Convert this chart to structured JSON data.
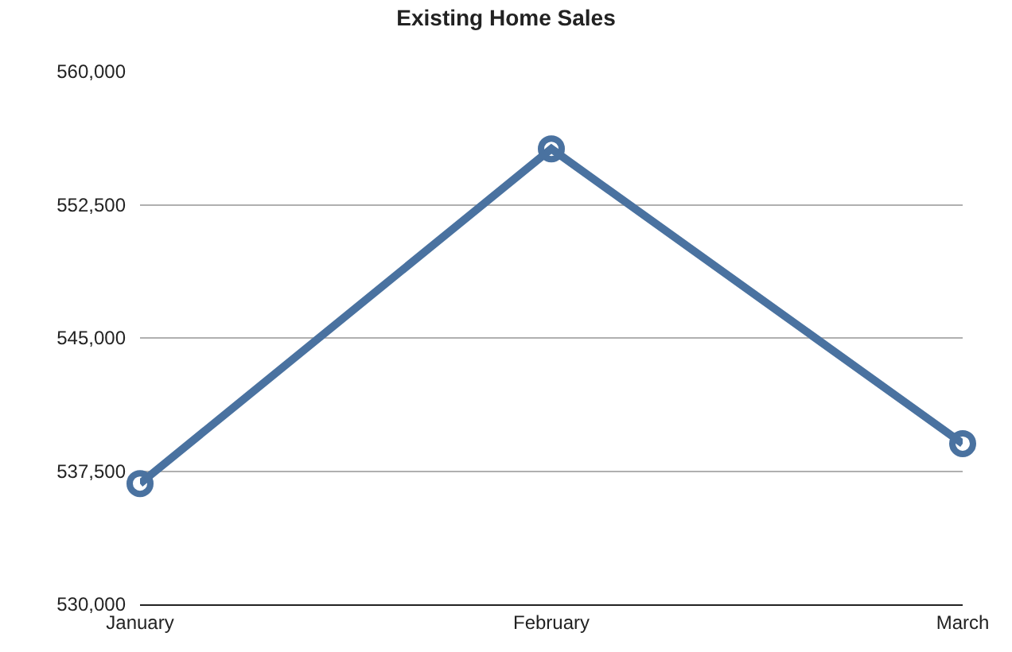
{
  "chart_data": {
    "type": "line",
    "title": "Existing Home Sales",
    "categories": [
      "January",
      "February",
      "March"
    ],
    "series": [
      {
        "color": "#4a72a0",
        "values": [
          536800,
          555650,
          539050
        ]
      }
    ],
    "ylim": [
      530000,
      560000
    ],
    "yticks": [
      {
        "value": 530000,
        "label": "530,000"
      },
      {
        "value": 537500,
        "label": "537,500"
      },
      {
        "value": 545000,
        "label": "545,000"
      },
      {
        "value": 552500,
        "label": "552,500"
      },
      {
        "value": 560000,
        "label": "560,000"
      }
    ],
    "grid": "y",
    "legend": false,
    "marker": "circle",
    "line_style": "solid"
  }
}
